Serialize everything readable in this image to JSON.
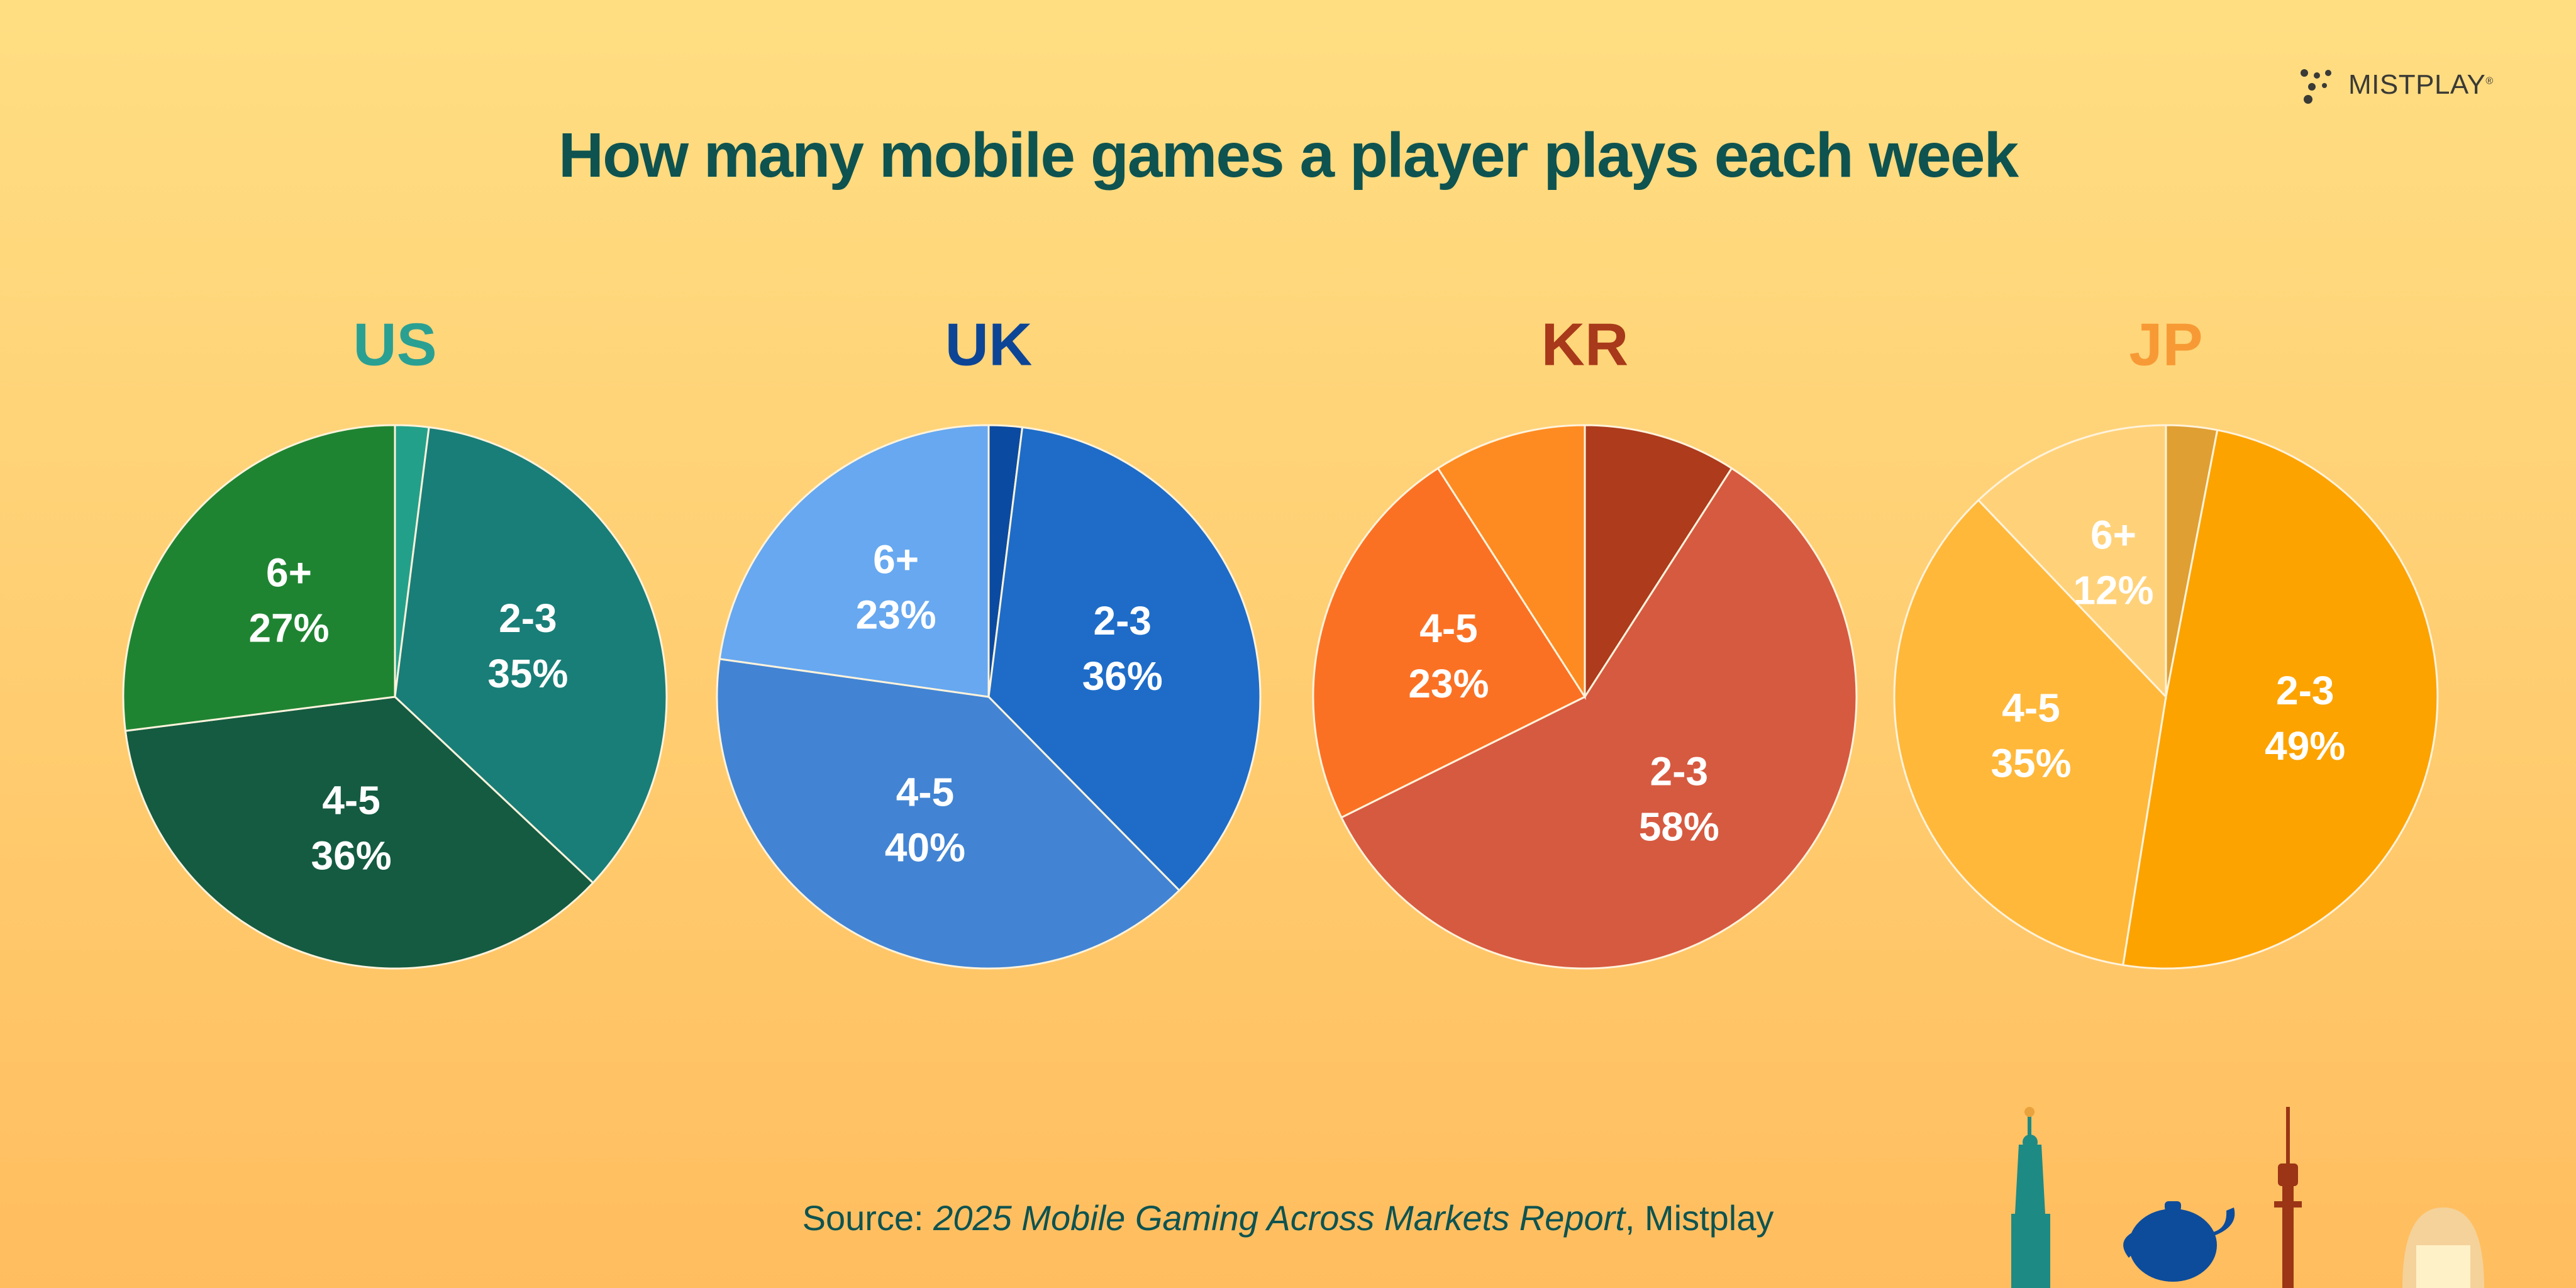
{
  "brand": {
    "name": "MISTPLAY",
    "mark": "®",
    "icon": "mistplay-logo-icon"
  },
  "title": "How many mobile games a player plays each week",
  "source": {
    "prefix": "Source: ",
    "report": "2025 Mobile Gaming Across Markets Report",
    "suffix": ", Mistplay"
  },
  "chart_data": [
    {
      "type": "pie",
      "title": "US",
      "title_color": "#2aa093",
      "slices": [
        {
          "label": "",
          "value": 2,
          "color": "#23a08a"
        },
        {
          "label": "2-3",
          "value": 35,
          "color": "#197e77"
        },
        {
          "label": "4-5",
          "value": 36,
          "color": "#145b41"
        },
        {
          "label": "6+",
          "value": 27,
          "color": "#1f8432"
        }
      ]
    },
    {
      "type": "pie",
      "title": "UK",
      "title_color": "#0d4596",
      "slices": [
        {
          "label": "",
          "value": 2,
          "color": "#0b4aa1"
        },
        {
          "label": "2-3",
          "value": 36,
          "color": "#1e6cc8"
        },
        {
          "label": "4-5",
          "value": 40,
          "color": "#4284d3"
        },
        {
          "label": "6+",
          "value": 23,
          "color": "#67a8f0"
        }
      ]
    },
    {
      "type": "pie",
      "title": "KR",
      "title_color": "#a8391a",
      "slices": [
        {
          "label": "",
          "value": 9,
          "color": "#ad3b1c"
        },
        {
          "label": "2-3",
          "value": 58,
          "color": "#d65a40"
        },
        {
          "label": "4-5",
          "value": 23,
          "color": "#fb7124"
        },
        {
          "label": "",
          "value": 9,
          "color": "#fd8b22"
        }
      ]
    },
    {
      "type": "pie",
      "title": "JP",
      "title_color": "#f79a35",
      "slices": [
        {
          "label": "",
          "value": 3,
          "color": "#df9f32"
        },
        {
          "label": "2-3",
          "value": 49,
          "color": "#fca300"
        },
        {
          "label": "4-5",
          "value": 35,
          "color": "#ffb83a"
        },
        {
          "label": "6+",
          "value": 12,
          "color": "#ffd27a"
        }
      ]
    }
  ]
}
